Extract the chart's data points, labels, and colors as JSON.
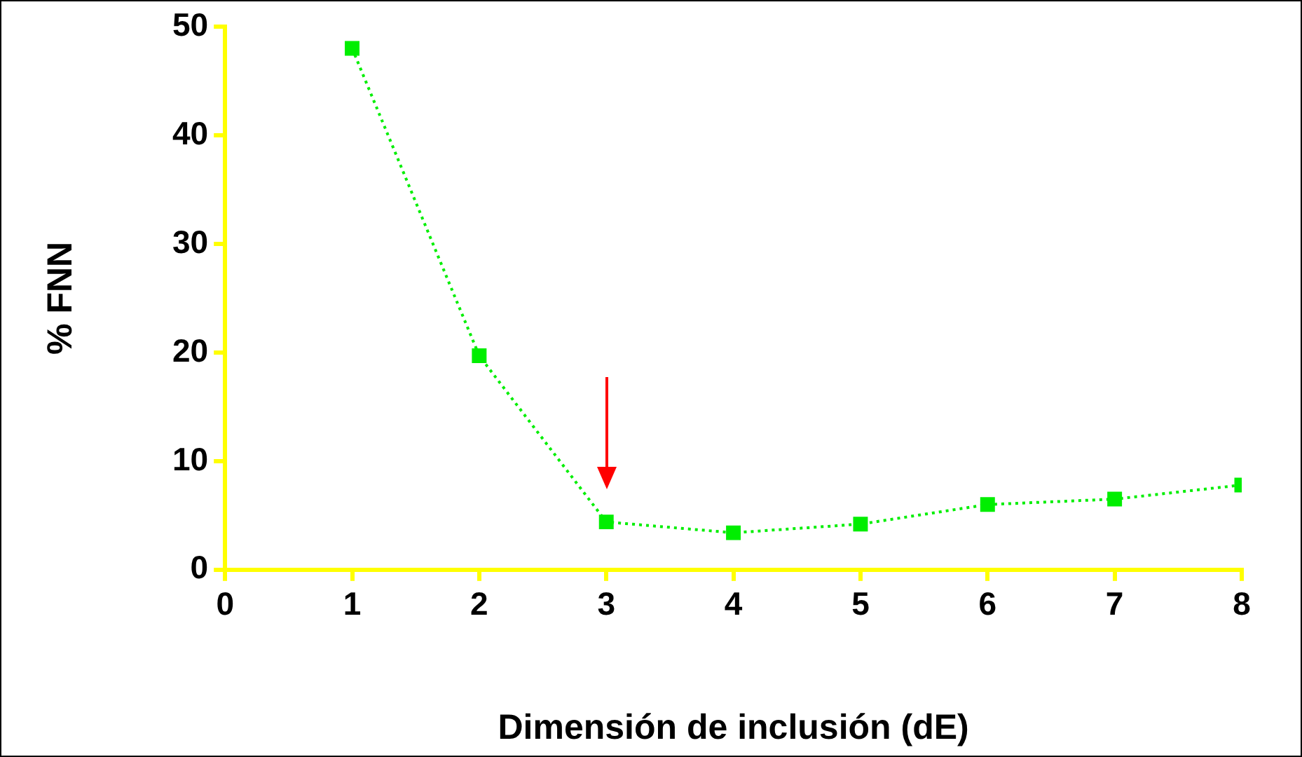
{
  "chart_data": {
    "type": "line",
    "xlabel": "Dimensión de inclusión (dE)",
    "ylabel": "% FNN",
    "x": [
      1,
      2,
      3,
      4,
      5,
      6,
      7,
      8
    ],
    "series": [
      {
        "color": "#00ee00",
        "values": [
          48.0,
          19.7,
          4.4,
          3.4,
          4.2,
          6.0,
          6.5,
          7.8
        ]
      }
    ],
    "xlim": [
      0,
      8
    ],
    "xticks": [
      0,
      1,
      2,
      3,
      4,
      5,
      6,
      7,
      8
    ],
    "ylim": [
      0,
      50
    ],
    "yticks": [
      0,
      10,
      20,
      30,
      40,
      50
    ],
    "grid": false,
    "legend": false,
    "marker": "square",
    "line_style": "dotted"
  }
}
